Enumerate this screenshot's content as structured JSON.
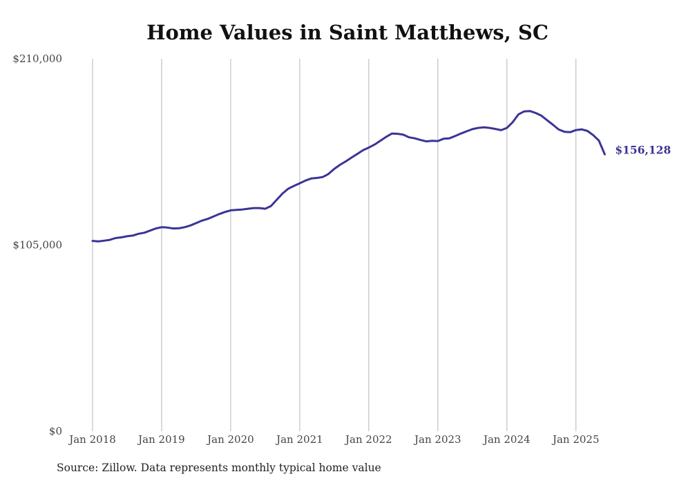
{
  "chart_data": {
    "type": "line",
    "title": "Home Values in Saint Matthews, SC",
    "xlabel": "",
    "ylabel": "",
    "ylim": [
      0,
      210000
    ],
    "yticks": [
      {
        "value": 0,
        "label": "$0"
      },
      {
        "value": 105000,
        "label": "$105,000"
      },
      {
        "value": 210000,
        "label": "$210,000"
      }
    ],
    "xlim": [
      "2018-01",
      "2025-06"
    ],
    "xticks": [
      {
        "value": "2018-01",
        "label": "Jan 2018"
      },
      {
        "value": "2019-01",
        "label": "Jan 2019"
      },
      {
        "value": "2020-01",
        "label": "Jan 2020"
      },
      {
        "value": "2021-01",
        "label": "Jan 2021"
      },
      {
        "value": "2022-01",
        "label": "Jan 2022"
      },
      {
        "value": "2023-01",
        "label": "Jan 2023"
      },
      {
        "value": "2024-01",
        "label": "Jan 2024"
      },
      {
        "value": "2025-01",
        "label": "Jan 2025"
      }
    ],
    "grid": "vertical",
    "line_color": "#3a3496",
    "series": [
      {
        "x": [
          "2018-01",
          "2018-02",
          "2018-03",
          "2018-04",
          "2018-05",
          "2018-06",
          "2018-07",
          "2018-08",
          "2018-09",
          "2018-10",
          "2018-11",
          "2018-12",
          "2019-01",
          "2019-02",
          "2019-03",
          "2019-04",
          "2019-05",
          "2019-06",
          "2019-07",
          "2019-08",
          "2019-09",
          "2019-10",
          "2019-11",
          "2019-12",
          "2020-01",
          "2020-02",
          "2020-03",
          "2020-04",
          "2020-05",
          "2020-06",
          "2020-07",
          "2020-08",
          "2020-09",
          "2020-10",
          "2020-11",
          "2020-12",
          "2021-01",
          "2021-02",
          "2021-03",
          "2021-04",
          "2021-05",
          "2021-06",
          "2021-07",
          "2021-08",
          "2021-09",
          "2021-10",
          "2021-11",
          "2021-12",
          "2022-01",
          "2022-02",
          "2022-03",
          "2022-04",
          "2022-05",
          "2022-06",
          "2022-07",
          "2022-08",
          "2022-09",
          "2022-10",
          "2022-11",
          "2022-12",
          "2023-01",
          "2023-02",
          "2023-03",
          "2023-04",
          "2023-05",
          "2023-06",
          "2023-07",
          "2023-08",
          "2023-09",
          "2023-10",
          "2023-11",
          "2023-12",
          "2024-01",
          "2024-02",
          "2024-03",
          "2024-04",
          "2024-05",
          "2024-06",
          "2024-07",
          "2024-08",
          "2024-09",
          "2024-10",
          "2024-11",
          "2024-12",
          "2025-01",
          "2025-02",
          "2025-03",
          "2025-04",
          "2025-05",
          "2025-06"
        ],
        "y": [
          107300,
          107000,
          107400,
          107900,
          108900,
          109300,
          109900,
          110300,
          111300,
          111900,
          113100,
          114300,
          115000,
          114800,
          114300,
          114400,
          115000,
          116000,
          117300,
          118700,
          119700,
          121000,
          122400,
          123600,
          124500,
          124800,
          125000,
          125400,
          125800,
          125800,
          125400,
          126900,
          130500,
          134000,
          136700,
          138300,
          139800,
          141300,
          142500,
          142800,
          143300,
          145000,
          147900,
          150200,
          152100,
          154300,
          156300,
          158400,
          159900,
          161600,
          163700,
          165900,
          167800,
          167700,
          167200,
          165700,
          165100,
          164200,
          163400,
          163700,
          163600,
          164900,
          165100,
          166400,
          167800,
          169100,
          170300,
          171000,
          171300,
          171000,
          170400,
          169700,
          171000,
          174200,
          178600,
          180300,
          180500,
          179400,
          177900,
          175300,
          172800,
          170100,
          168800,
          168600,
          169800,
          170200,
          169300,
          166900,
          163800,
          156128
        ]
      }
    ],
    "end_label": "$156,128",
    "source": "Source: Zillow. Data represents monthly typical home value"
  }
}
